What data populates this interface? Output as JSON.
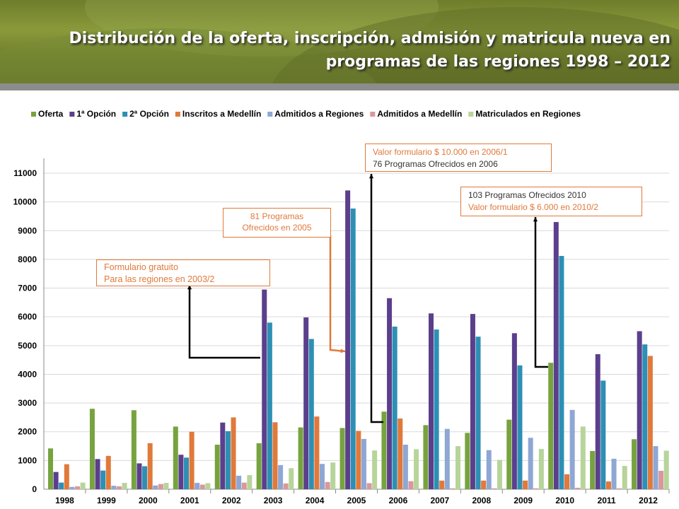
{
  "title": "Distribución de la oferta, inscripción, admisión y matricula nueva en programas de las regiones 1998 – 2012",
  "chart_data": {
    "type": "bar",
    "categories": [
      "1998",
      "1999",
      "2000",
      "2001",
      "2002",
      "2003",
      "2004",
      "2005",
      "2006",
      "2007",
      "2008",
      "2009",
      "2010",
      "2011",
      "2012"
    ],
    "ylim": [
      0,
      11000
    ],
    "yticks": [
      0,
      1000,
      2000,
      3000,
      4000,
      5000,
      6000,
      7000,
      8000,
      9000,
      10000,
      11000
    ],
    "legend_position": "top",
    "grid": "horizontal",
    "series": [
      {
        "name": "Oferta",
        "color": "#77a33f",
        "values": [
          1420,
          2800,
          2750,
          2180,
          1550,
          1600,
          2150,
          2130,
          2700,
          2230,
          1960,
          2420,
          4400,
          1330,
          1740
        ]
      },
      {
        "name": "1ª Opción",
        "color": "#5b3f8c",
        "values": [
          600,
          1050,
          900,
          1200,
          2320,
          6950,
          5980,
          10400,
          6650,
          6120,
          6100,
          5430,
          9300,
          4700,
          5500
        ]
      },
      {
        "name": "2ª Opción",
        "color": "#2e8fb4",
        "values": [
          230,
          650,
          800,
          1100,
          2020,
          5800,
          5230,
          9770,
          5660,
          5560,
          5310,
          4310,
          8120,
          3780,
          5040
        ]
      },
      {
        "name": "Inscritos a Medellín",
        "color": "#e0793a",
        "values": [
          870,
          1160,
          1600,
          2000,
          2500,
          2330,
          2530,
          2030,
          2460,
          300,
          300,
          300,
          520,
          270,
          4640
        ]
      },
      {
        "name": "Admitidos a Regiones",
        "color": "#8ea7d4",
        "values": [
          80,
          120,
          130,
          220,
          470,
          840,
          880,
          1750,
          1550,
          2100,
          1360,
          1790,
          2760,
          1060,
          1500
        ]
      },
      {
        "name": "Admitidos a Medellín",
        "color": "#d9989b",
        "values": [
          100,
          100,
          180,
          160,
          230,
          200,
          250,
          210,
          280,
          30,
          30,
          30,
          50,
          30,
          640
        ]
      },
      {
        "name": "Matriculados en Regiones",
        "color": "#b7d49a",
        "values": [
          230,
          220,
          220,
          210,
          490,
          730,
          930,
          1350,
          1390,
          1500,
          1020,
          1400,
          2180,
          810,
          1340
        ]
      }
    ],
    "annotations": [
      {
        "lines": [
          "Formulario gratuito",
          "Para las regiones en 2003/2"
        ],
        "color": "#e0793a",
        "target": "2003"
      },
      {
        "lines": [
          "81 Programas",
          "Ofrecidos en 2005"
        ],
        "color": "#e0793a",
        "target": "2005"
      },
      {
        "lines": [
          "Valor formulario $ 10.000 en 2006/1",
          "76 Programas Ofrecidos en 2006"
        ],
        "color_line1": "#e0793a",
        "color_line2": "#333333",
        "target": "2006"
      },
      {
        "lines": [
          "103 Programas Ofrecidos  2010",
          "Valor formulario $ 6.000 en 2010/2"
        ],
        "color_line1": "#333333",
        "color_line2": "#e0793a",
        "target": "2010"
      }
    ]
  }
}
